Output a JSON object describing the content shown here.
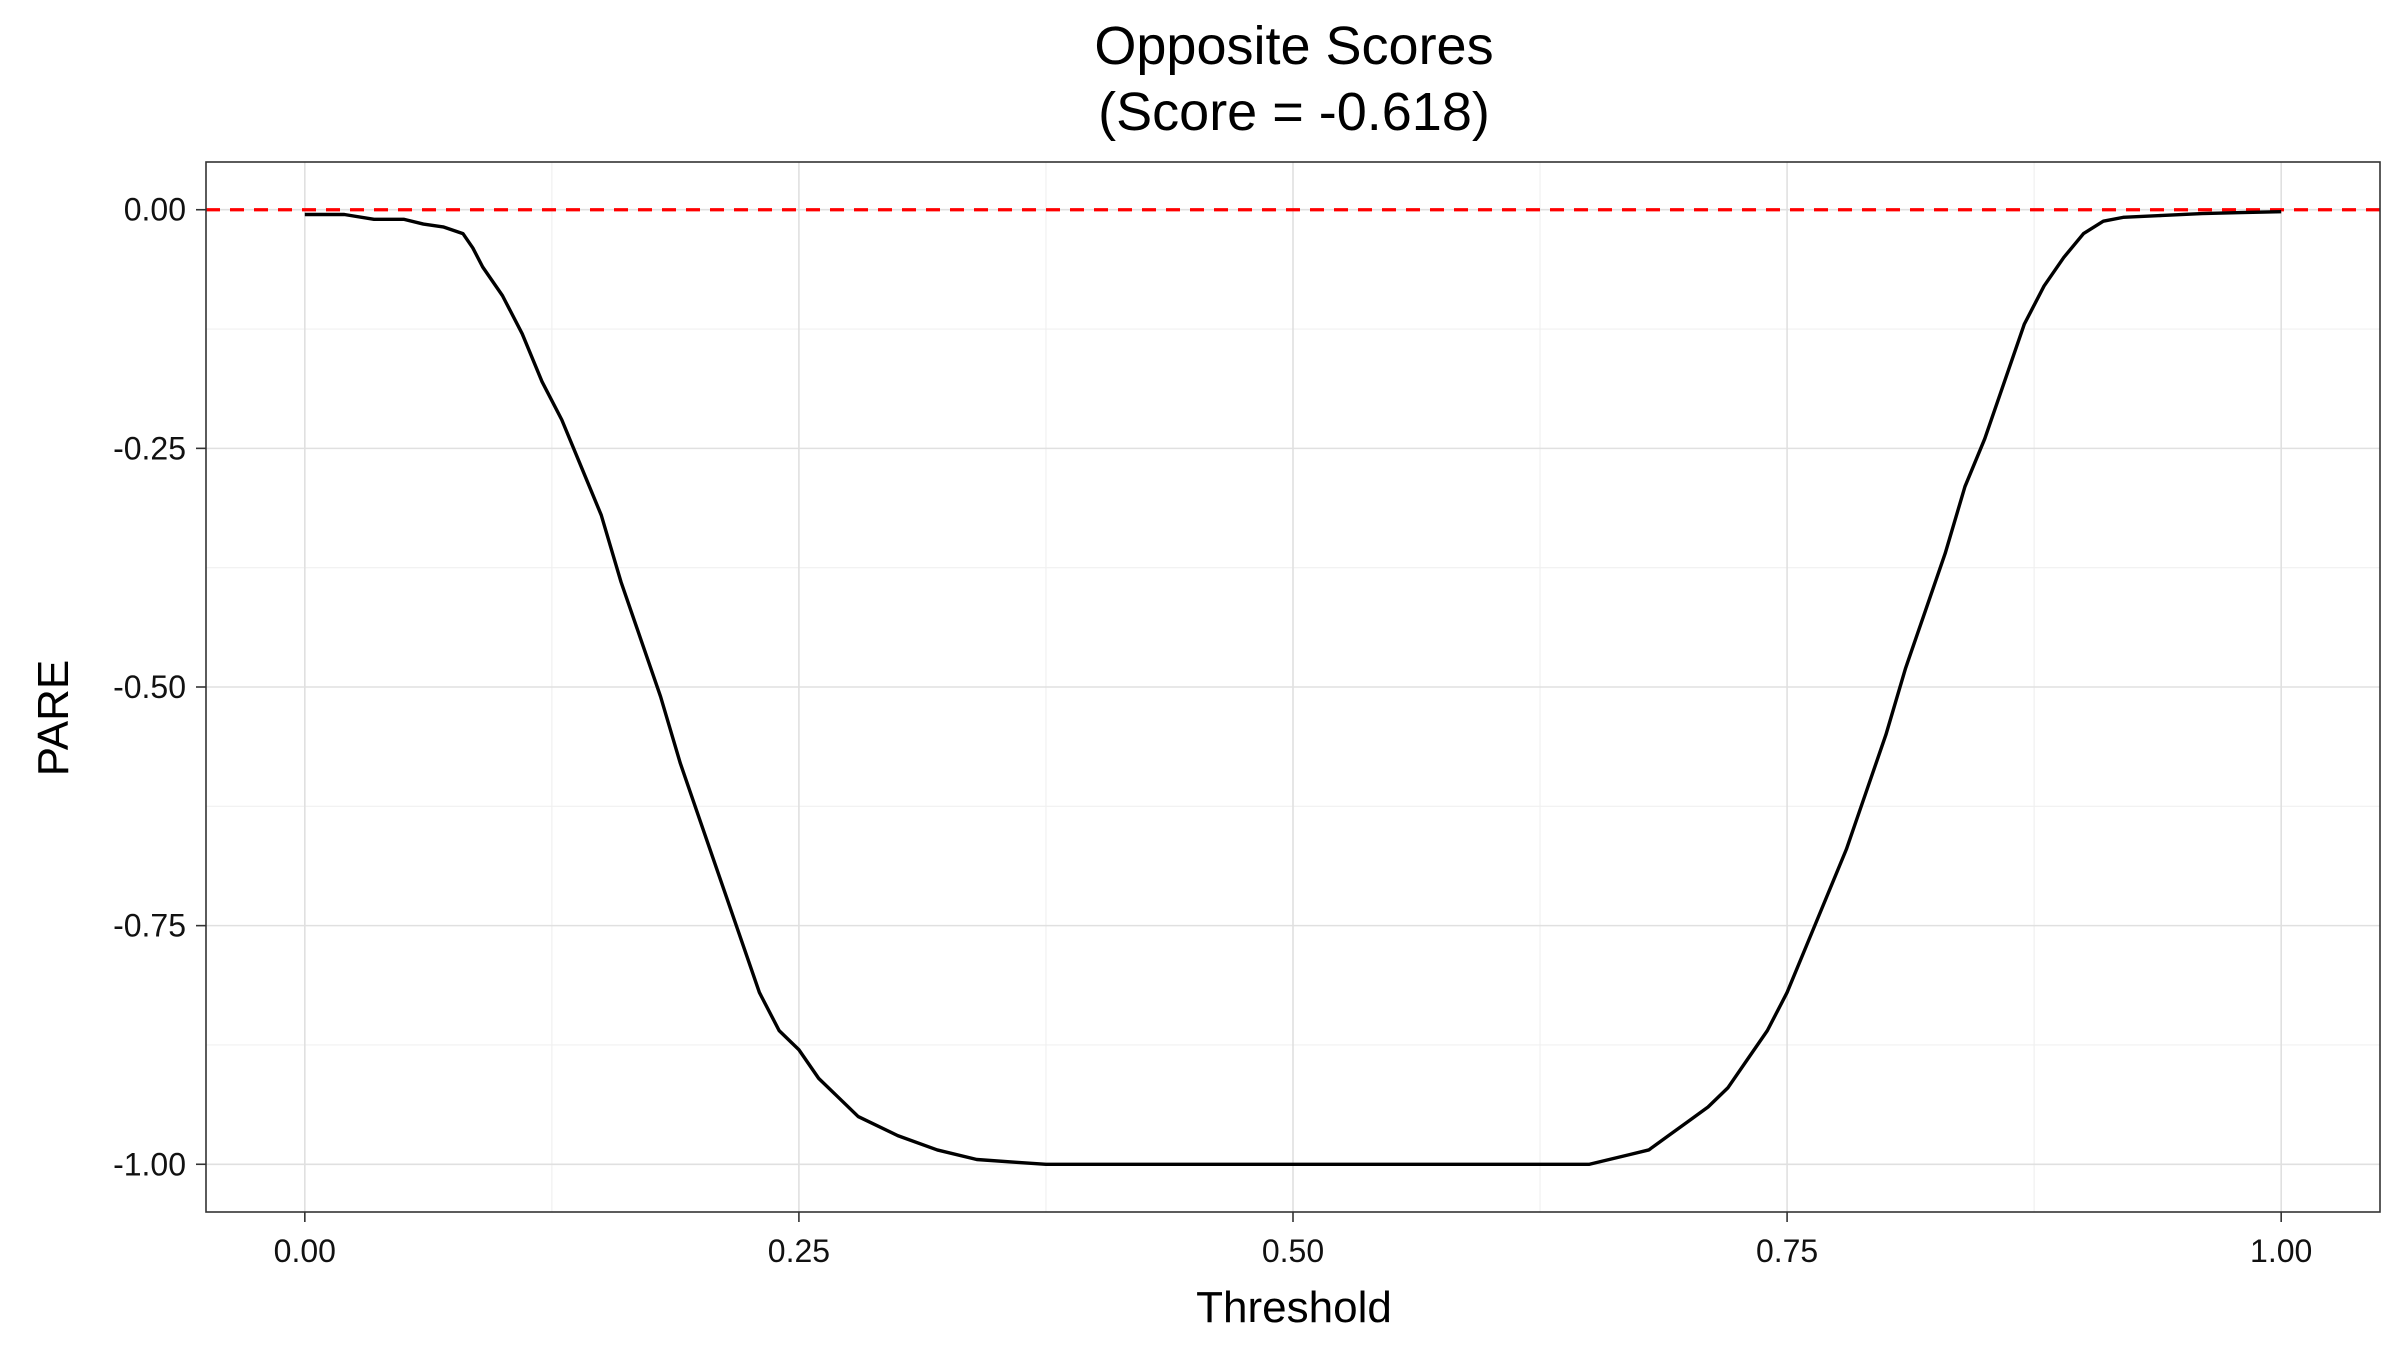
{
  "chart_data": {
    "type": "line",
    "title_line1": "Opposite Scores",
    "title_line2": "(Score = -0.618)",
    "xlabel": "Threshold",
    "ylabel": "PARE",
    "xlim": [
      -0.05,
      1.05
    ],
    "ylim": [
      -1.05,
      0.05
    ],
    "x_ticks": [
      {
        "value": 0.0,
        "label": "0.00"
      },
      {
        "value": 0.25,
        "label": "0.25"
      },
      {
        "value": 0.5,
        "label": "0.50"
      },
      {
        "value": 0.75,
        "label": "0.75"
      },
      {
        "value": 1.0,
        "label": "1.00"
      }
    ],
    "y_ticks": [
      {
        "value": 0.0,
        "label": "0.00"
      },
      {
        "value": -0.25,
        "label": "-0.25"
      },
      {
        "value": -0.5,
        "label": "-0.50"
      },
      {
        "value": -0.75,
        "label": "-0.75"
      },
      {
        "value": -1.0,
        "label": "-1.00"
      }
    ],
    "x_minor": [
      0.125,
      0.375,
      0.625,
      0.875
    ],
    "y_minor": [
      -0.125,
      -0.375,
      -0.625,
      -0.875
    ],
    "grid": true,
    "reference_line": {
      "y": 0.0,
      "color": "#ff0000",
      "style": "dashed"
    },
    "series": [
      {
        "color": "#000000",
        "x": [
          0.0,
          0.02,
          0.035,
          0.05,
          0.06,
          0.07,
          0.08,
          0.085,
          0.09,
          0.1,
          0.11,
          0.12,
          0.13,
          0.14,
          0.15,
          0.16,
          0.17,
          0.18,
          0.19,
          0.2,
          0.21,
          0.22,
          0.23,
          0.24,
          0.25,
          0.26,
          0.27,
          0.28,
          0.3,
          0.32,
          0.34,
          0.36,
          0.375,
          0.4,
          0.5,
          0.6,
          0.65,
          0.66,
          0.67,
          0.68,
          0.69,
          0.7,
          0.71,
          0.72,
          0.73,
          0.74,
          0.75,
          0.76,
          0.77,
          0.78,
          0.79,
          0.8,
          0.81,
          0.82,
          0.83,
          0.84,
          0.85,
          0.86,
          0.87,
          0.88,
          0.89,
          0.9,
          0.91,
          0.92,
          0.94,
          0.96,
          0.98,
          1.0
        ],
        "y": [
          -0.005,
          -0.005,
          -0.01,
          -0.01,
          -0.015,
          -0.018,
          -0.025,
          -0.04,
          -0.06,
          -0.09,
          -0.13,
          -0.18,
          -0.22,
          -0.27,
          -0.32,
          -0.39,
          -0.45,
          -0.51,
          -0.58,
          -0.64,
          -0.7,
          -0.76,
          -0.82,
          -0.86,
          -0.88,
          -0.91,
          -0.93,
          -0.95,
          -0.97,
          -0.985,
          -0.995,
          -0.998,
          -1.0,
          -1.0,
          -1.0,
          -1.0,
          -1.0,
          -0.995,
          -0.99,
          -0.985,
          -0.97,
          -0.955,
          -0.94,
          -0.92,
          -0.89,
          -0.86,
          -0.82,
          -0.77,
          -0.72,
          -0.67,
          -0.61,
          -0.55,
          -0.48,
          -0.42,
          -0.36,
          -0.29,
          -0.24,
          -0.18,
          -0.12,
          -0.08,
          -0.05,
          -0.025,
          -0.012,
          -0.008,
          -0.006,
          -0.004,
          -0.003,
          -0.002
        ]
      }
    ]
  }
}
